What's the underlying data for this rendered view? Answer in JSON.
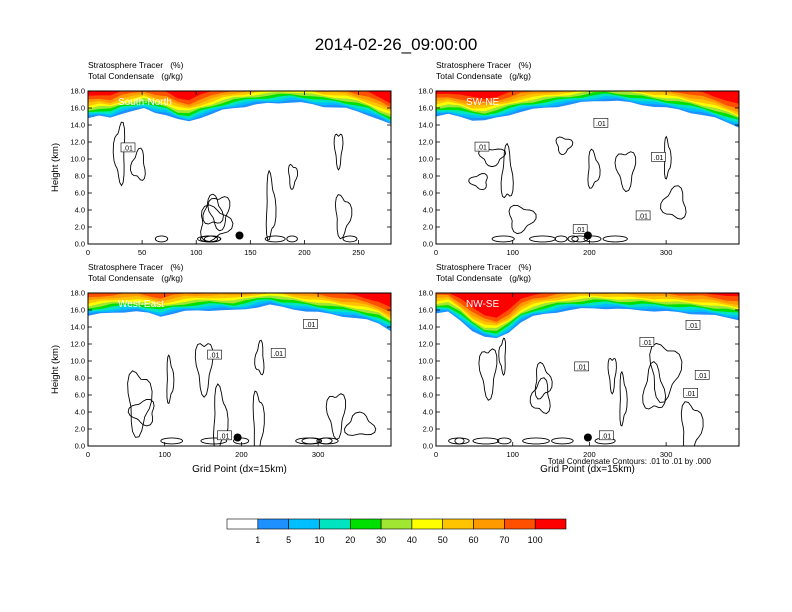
{
  "figure": {
    "title": "2014-02-26_09:00:00",
    "contour_note": "Total Condensate Contours: .01 to .01 by .000"
  },
  "chart_data": [
    {
      "type": "heatmap",
      "label": "South-North",
      "subtitle_lines": [
        "Stratosphere Tracer   (%)",
        "Total Condensate   (g/kg)"
      ],
      "ylabel": "Height (km)",
      "xlabel": "",
      "xlim": [
        0,
        280
      ],
      "ylim": [
        0,
        18
      ],
      "x_ticks": [
        0,
        50,
        100,
        150,
        200,
        250
      ],
      "y_ticks": [
        "0.0",
        "2.0",
        "4.0",
        "6.0",
        "8.0",
        "10.0",
        "12.0",
        "14.0",
        "16.0",
        "18.0"
      ],
      "tracer_top_km": [
        14.8,
        15.0,
        14.9,
        15.4,
        15.6,
        15.9,
        15.5,
        15.2,
        14.6,
        14.4,
        14.9,
        15.3,
        15.7,
        16.0,
        16.2,
        16.4,
        16.5,
        16.6,
        16.7,
        16.6,
        16.4,
        16.2,
        16.1,
        15.9,
        15.6,
        15.2,
        14.6,
        14.0
      ],
      "contour_labels": [
        {
          "x": 37,
          "y": 11.3,
          "text": ".01"
        }
      ],
      "marker": {
        "x": 140,
        "y": 1.0
      }
    },
    {
      "type": "heatmap",
      "label": "SW-NE",
      "subtitle_lines": [
        "Stratosphere Tracer   (%)",
        "Total Condensate   (g/kg)"
      ],
      "ylabel": "",
      "xlabel": "",
      "xlim": [
        0,
        395
      ],
      "ylim": [
        0,
        18
      ],
      "x_ticks": [
        0,
        100,
        200,
        300
      ],
      "y_ticks": [
        "0.0",
        "2.0",
        "4.0",
        "6.0",
        "8.0",
        "10.0",
        "12.0",
        "14.0",
        "16.0",
        "18.0"
      ],
      "tracer_top_km": [
        15.0,
        15.2,
        15.0,
        14.6,
        14.5,
        14.8,
        15.2,
        15.6,
        15.8,
        16.0,
        16.2,
        16.4,
        16.6,
        16.8,
        16.9,
        16.8,
        16.6,
        16.4,
        16.2,
        16.0,
        15.8,
        15.5,
        15.2,
        14.8,
        14.3,
        13.8
      ],
      "contour_labels": [
        {
          "x": 60,
          "y": 11.4,
          "text": ".01"
        },
        {
          "x": 215,
          "y": 14.2,
          "text": ".01"
        },
        {
          "x": 290,
          "y": 10.2,
          "text": ".01"
        },
        {
          "x": 270,
          "y": 3.3,
          "text": ".01"
        },
        {
          "x": 188,
          "y": 1.7,
          "text": ".01"
        }
      ],
      "marker": {
        "x": 198,
        "y": 1.0
      }
    },
    {
      "type": "heatmap",
      "label": "West-East",
      "subtitle_lines": [
        "Stratosphere Tracer   (%)",
        "Total Condensate   (g/kg)"
      ],
      "ylabel": "Height (km)",
      "xlabel": "Grid Point (dx=15km)",
      "xlim": [
        0,
        395
      ],
      "ylim": [
        0,
        18
      ],
      "x_ticks": [
        0,
        100,
        200,
        300
      ],
      "y_ticks": [
        "0.0",
        "2.0",
        "4.0",
        "6.0",
        "8.0",
        "10.0",
        "12.0",
        "14.0",
        "16.0",
        "18.0"
      ],
      "tracer_top_km": [
        15.3,
        15.5,
        15.7,
        15.8,
        15.8,
        15.6,
        15.3,
        15.6,
        15.8,
        15.9,
        16.0,
        16.0,
        15.9,
        16.1,
        16.4,
        16.6,
        16.3,
        16.1,
        15.9,
        15.7,
        15.5,
        15.3,
        15.1,
        14.8,
        14.4,
        13.6
      ],
      "contour_labels": [
        {
          "x": 165,
          "y": 10.7,
          "text": ".01"
        },
        {
          "x": 248,
          "y": 10.9,
          "text": ".01"
        },
        {
          "x": 290,
          "y": 14.3,
          "text": ".01"
        },
        {
          "x": 178,
          "y": 1.2,
          "text": ".01"
        }
      ],
      "marker": {
        "x": 195,
        "y": 1.0
      }
    },
    {
      "type": "heatmap",
      "label": "NW-SE",
      "subtitle_lines": [
        "Stratosphere Tracer   (%)",
        "Total Condensate   (g/kg)"
      ],
      "ylabel": "",
      "xlabel": "Grid Point (dx=15km)",
      "xlim": [
        0,
        395
      ],
      "ylim": [
        0,
        18
      ],
      "x_ticks": [
        0,
        100,
        200,
        300
      ],
      "y_ticks": [
        "0.0",
        "2.0",
        "4.0",
        "6.0",
        "8.0",
        "10.0",
        "12.0",
        "14.0",
        "16.0",
        "18.0"
      ],
      "tracer_top_km": [
        15.6,
        15.7,
        14.8,
        13.6,
        12.8,
        12.6,
        13.4,
        14.6,
        15.2,
        15.5,
        15.8,
        16.0,
        16.1,
        16.2,
        16.2,
        16.1,
        16.0,
        16.0,
        15.9,
        15.8,
        15.7,
        15.6,
        15.5,
        15.3,
        15.1,
        14.9
      ],
      "contour_labels": [
        {
          "x": 335,
          "y": 14.2,
          "text": ".01"
        },
        {
          "x": 275,
          "y": 12.2,
          "text": ".01"
        },
        {
          "x": 190,
          "y": 9.3,
          "text": ".01"
        },
        {
          "x": 347,
          "y": 8.3,
          "text": ".01"
        },
        {
          "x": 332,
          "y": 6.2,
          "text": ".01"
        },
        {
          "x": 222,
          "y": 1.2,
          "text": ".01"
        }
      ],
      "marker": {
        "x": 198,
        "y": 1.0
      }
    }
  ],
  "colorbar": {
    "levels": [
      "1",
      "5",
      "10",
      "20",
      "30",
      "40",
      "50",
      "60",
      "70",
      "100"
    ],
    "colors": [
      "#ffffff",
      "#1e90ff",
      "#00bfff",
      "#00e5c0",
      "#00e000",
      "#a0e632",
      "#ffff00",
      "#ffc400",
      "#ff9a00",
      "#ff5000",
      "#ff0000"
    ]
  }
}
